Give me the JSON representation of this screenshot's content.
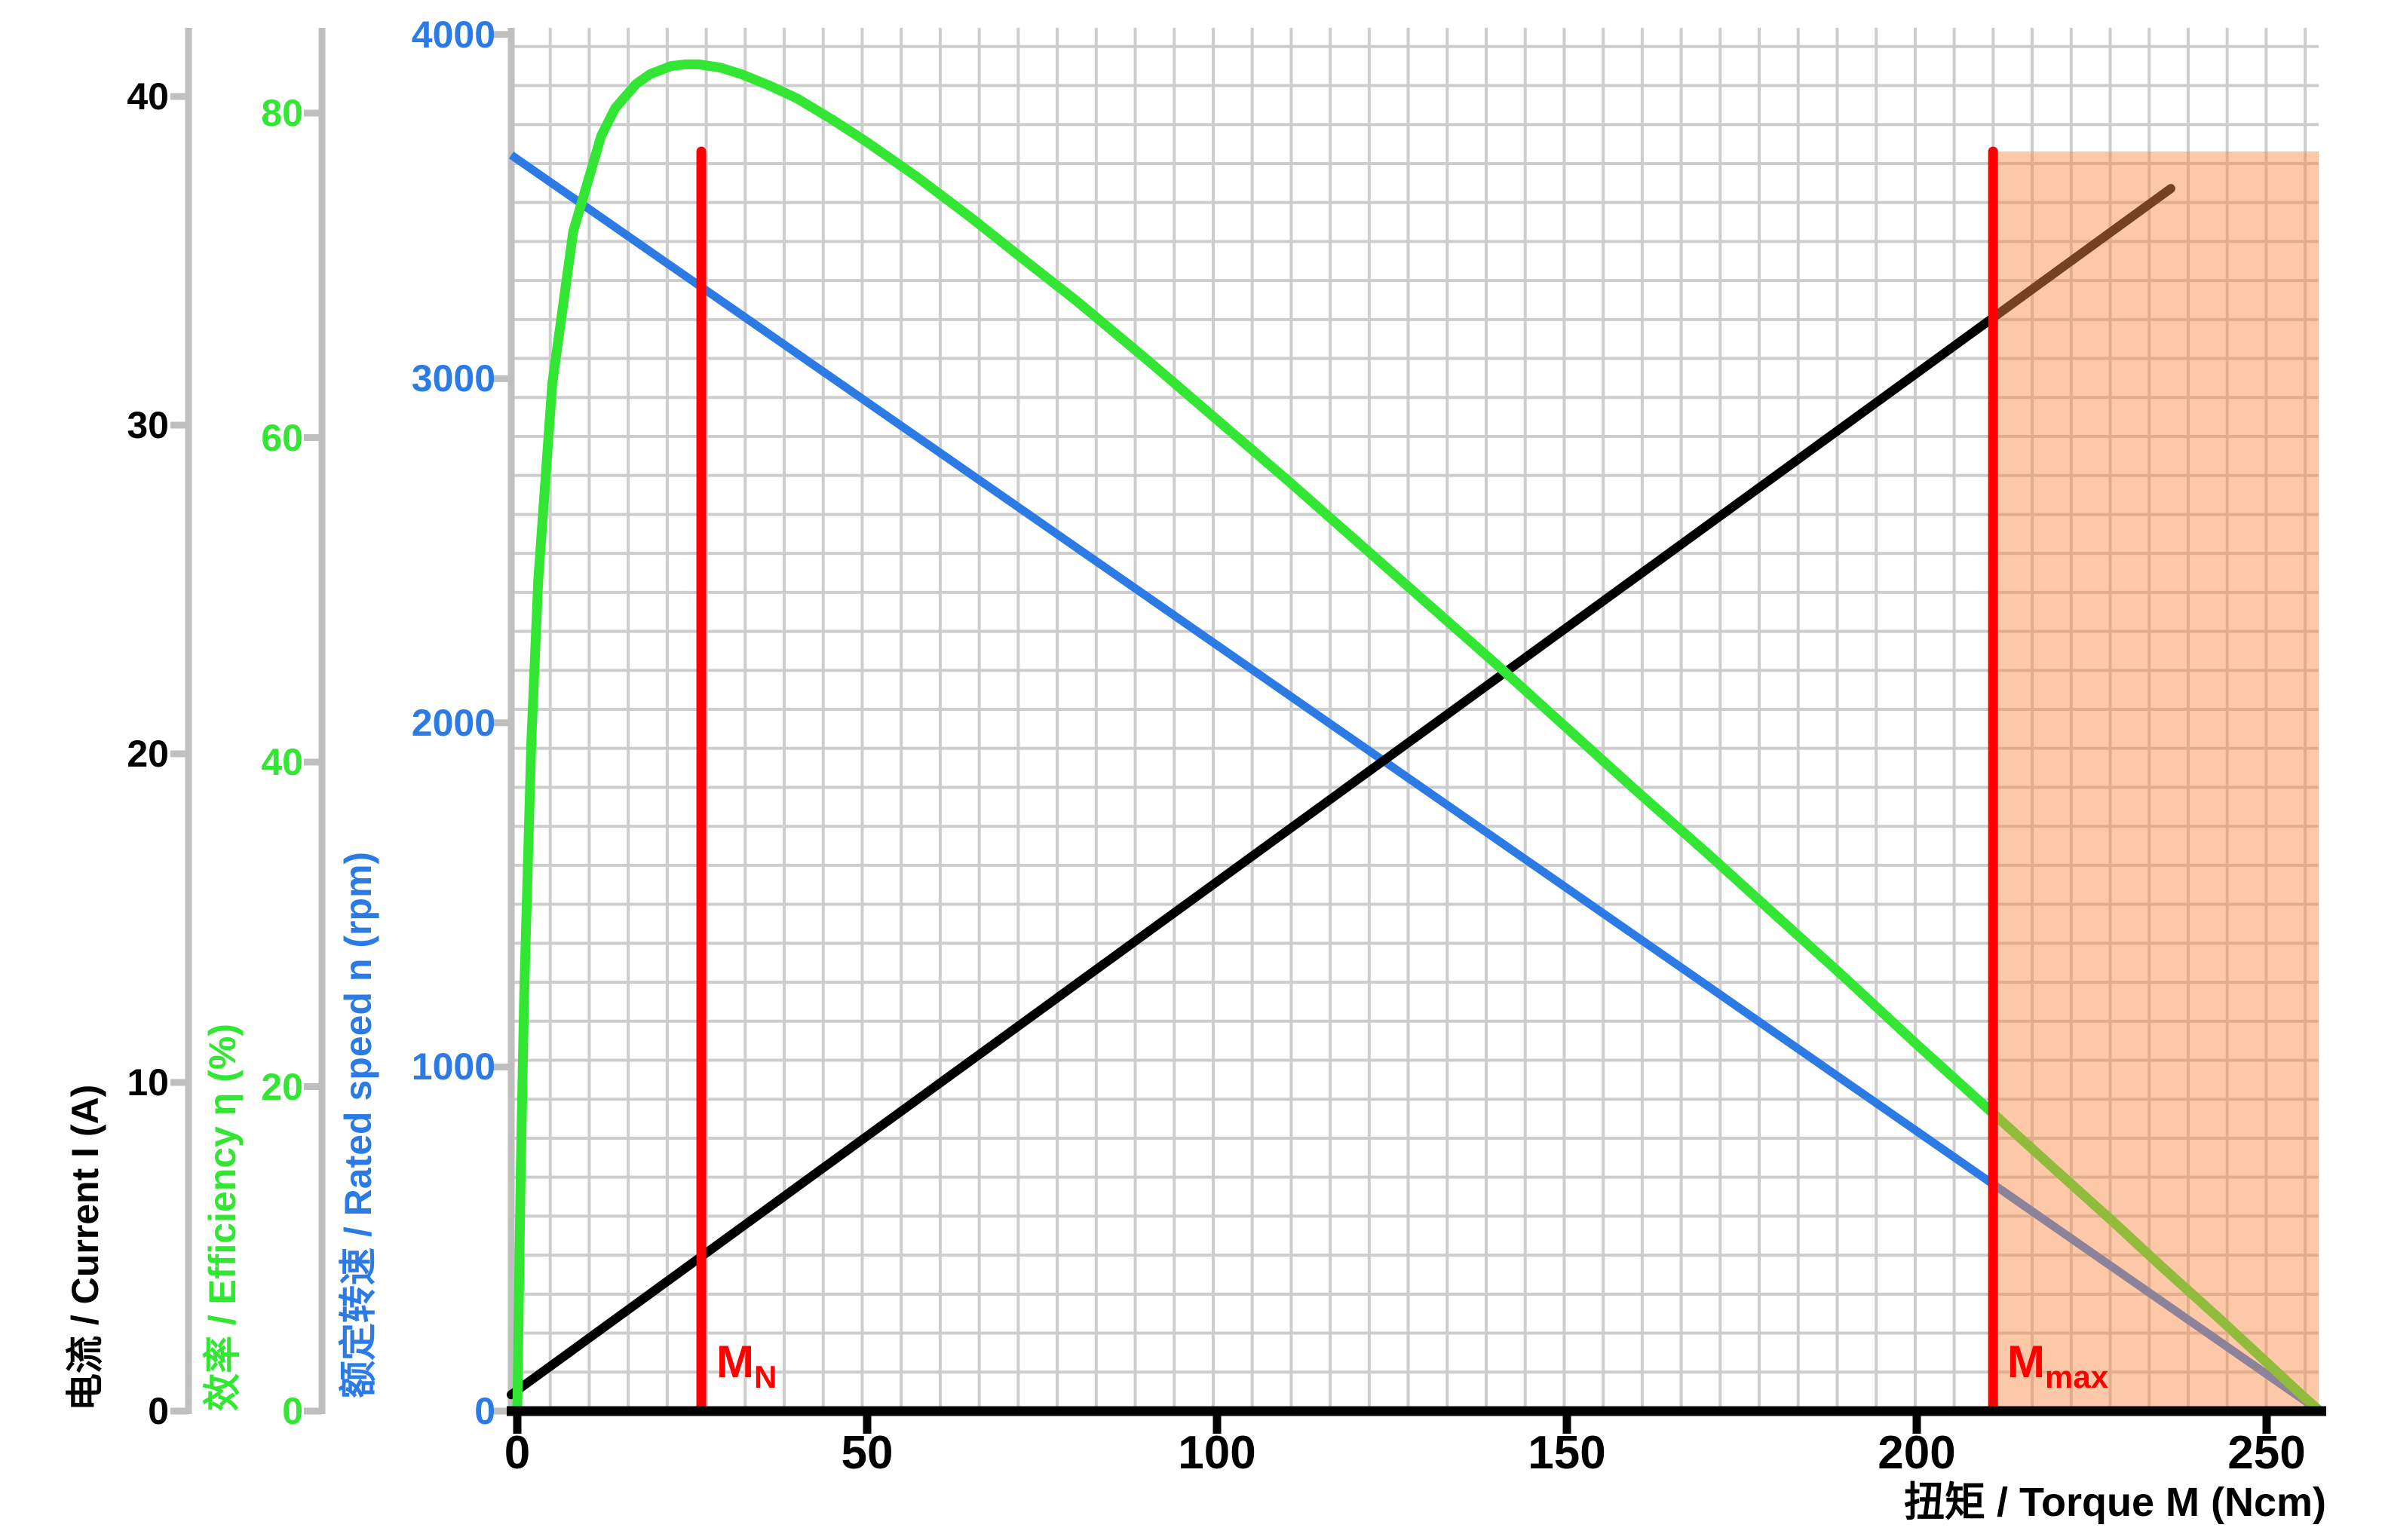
{
  "chart_data": {
    "type": "line",
    "title": "",
    "grid": true,
    "x_axis": {
      "label": "扭矩 / Torque M (Ncm)",
      "unit": "Ncm",
      "range": [
        0,
        257.6
      ],
      "ticks": [
        0,
        50,
        100,
        150,
        200,
        250
      ]
    },
    "y_axes": [
      {
        "id": "current",
        "label": "电流 / Current I (A)",
        "unit": "A",
        "color": "#000000",
        "range": [
          0,
          42
        ],
        "ticks": [
          0,
          10,
          20,
          30,
          40
        ]
      },
      {
        "id": "efficiency",
        "label": "效率 / Efficiency η  (%)",
        "unit": "%",
        "color": "#33E633",
        "range": [
          0,
          84
        ],
        "ticks": [
          0,
          20,
          40,
          60,
          80
        ]
      },
      {
        "id": "speed",
        "label": "额定转速 / Rated speed n (rpm)",
        "unit": "rpm",
        "color": "#2C7BE5",
        "range": [
          0,
          4200
        ],
        "ticks": [
          0,
          1000,
          2000,
          3000,
          4000
        ]
      }
    ],
    "series": [
      {
        "name": "speed",
        "axis": "speed",
        "color": "#2C7BE5",
        "points": [
          [
            0,
            3650
          ],
          [
            257.6,
            0
          ]
        ]
      },
      {
        "name": "current",
        "axis": "current",
        "color": "#000000",
        "points": [
          [
            0,
            0.5
          ],
          [
            236.3,
            37.2
          ]
        ]
      },
      {
        "name": "efficiency",
        "axis": "efficiency",
        "color": "#33E633",
        "points": [
          [
            0,
            0
          ],
          [
            0.5,
            14.8
          ],
          [
            1,
            25.9
          ],
          [
            2,
            41.2
          ],
          [
            3,
            51.2
          ],
          [
            5,
            63.3
          ],
          [
            8,
            72.7
          ],
          [
            12,
            78.6
          ],
          [
            14,
            80.3
          ],
          [
            17,
            81.8
          ],
          [
            19,
            82.4
          ],
          [
            22,
            82.9
          ],
          [
            24,
            83.0
          ],
          [
            26,
            83.0
          ],
          [
            29,
            82.8
          ],
          [
            32,
            82.4
          ],
          [
            36,
            81.7
          ],
          [
            40,
            80.9
          ],
          [
            45,
            79.6
          ],
          [
            50,
            78.2
          ],
          [
            57,
            76.1
          ],
          [
            65,
            73.5
          ],
          [
            72,
            71.1
          ],
          [
            80,
            68.4
          ],
          [
            90,
            64.8
          ],
          [
            100,
            61.1
          ],
          [
            110,
            57.4
          ],
          [
            120,
            53.6
          ],
          [
            130,
            49.8
          ],
          [
            140,
            46.0
          ],
          [
            150,
            42.1
          ],
          [
            160,
            38.2
          ],
          [
            170,
            34.4
          ],
          [
            180,
            30.5
          ],
          [
            190,
            26.6
          ],
          [
            200,
            22.6
          ],
          [
            210,
            18.7
          ],
          [
            220,
            14.8
          ],
          [
            228,
            11.7
          ],
          [
            235,
            8.9
          ],
          [
            243,
            5.8
          ],
          [
            250,
            3.0
          ],
          [
            255,
            1.0
          ],
          [
            257.6,
            0
          ]
        ]
      }
    ],
    "annotations": {
      "m_n": {
        "label": "M",
        "sub": "N",
        "x": 26.3,
        "top_rpm": 3660,
        "color": "#FF0000"
      },
      "m_max": {
        "label": "M",
        "sub": "max",
        "x": 210.9,
        "top_rpm": 3660,
        "color": "#FF0000"
      },
      "overload_region": {
        "from_x": 210.9,
        "to_x": 257.1,
        "top_rpm": 3660,
        "fill": "rgba(248,139,68,0.47)"
      }
    },
    "colors": {
      "grid": "#CDCDCD",
      "axis_gray": "#BFBFBF",
      "x_axis_line": "#000000"
    }
  }
}
